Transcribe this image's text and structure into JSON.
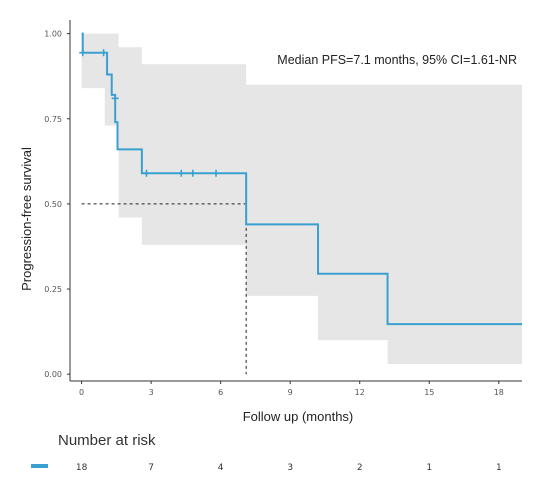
{
  "chart_data": {
    "type": "line",
    "subtype": "kaplan-meier",
    "xlabel": "Follow up (months)",
    "ylabel": "Progression-free survival",
    "xlim": [
      -0.5,
      19
    ],
    "ylim": [
      -0.02,
      1.04
    ],
    "x_ticks": [
      0,
      3,
      6,
      9,
      12,
      15,
      18
    ],
    "y_ticks": [
      0.0,
      0.25,
      0.5,
      0.75,
      1.0
    ],
    "y_tick_labels": [
      "0.00",
      "0.25",
      "0.50",
      "0.75",
      "1.00"
    ],
    "annotation": "Median PFS=7.1 months, 95% CI=1.61-NR",
    "median": {
      "x": 7.1,
      "y": 0.5
    },
    "colors": {
      "line": "#3aa0d0",
      "ci": "#e6e6e6",
      "censor": "#3aa0d0",
      "reference": "#222222"
    },
    "series": [
      {
        "steps": [
          [
            0,
            1.0
          ],
          [
            0.05,
            0.944
          ],
          [
            1.1,
            0.88
          ],
          [
            1.3,
            0.82
          ],
          [
            1.45,
            0.74
          ],
          [
            1.55,
            0.66
          ],
          [
            2.6,
            0.59
          ],
          [
            7.1,
            0.44
          ],
          [
            10.2,
            0.295
          ],
          [
            13.2,
            0.147
          ],
          [
            19,
            0.147
          ]
        ],
        "ci_upper": [
          [
            0,
            1.0
          ],
          [
            1.1,
            1.0
          ],
          [
            1.6,
            0.96
          ],
          [
            2.6,
            0.91
          ],
          [
            7.1,
            0.85
          ],
          [
            19,
            0.85
          ]
        ],
        "ci_lower": [
          [
            0,
            0.84
          ],
          [
            1.0,
            0.73
          ],
          [
            1.55,
            0.66
          ],
          [
            1.6,
            0.46
          ],
          [
            2.6,
            0.38
          ],
          [
            7.1,
            0.23
          ],
          [
            10.2,
            0.1
          ],
          [
            13.2,
            0.03
          ],
          [
            19,
            0.03
          ]
        ],
        "censored": [
          [
            0.05,
            0.944
          ],
          [
            0.95,
            0.944
          ],
          [
            1.45,
            0.81
          ],
          [
            2.8,
            0.59
          ],
          [
            4.3,
            0.59
          ],
          [
            4.8,
            0.59
          ],
          [
            5.8,
            0.59
          ]
        ]
      }
    ]
  },
  "risk_table": {
    "title": "Number at risk",
    "color": "#3aa0d0",
    "x": [
      0,
      3,
      6,
      9,
      12,
      15,
      18
    ],
    "counts": [
      "18",
      "7",
      "4",
      "3",
      "2",
      "1",
      "1"
    ]
  }
}
